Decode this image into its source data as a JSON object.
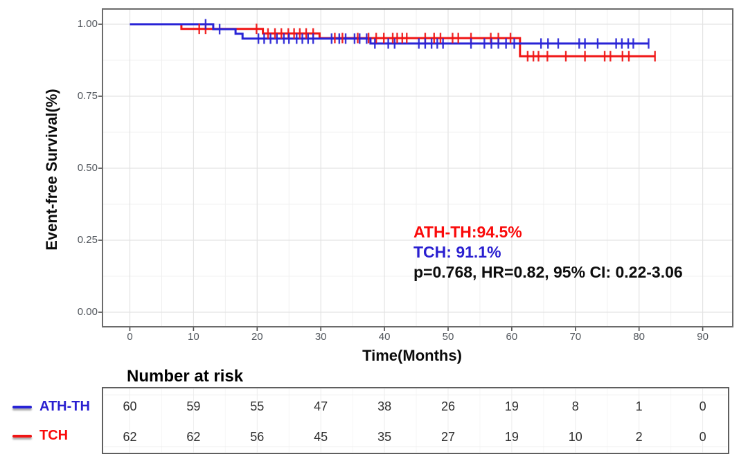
{
  "axes": {
    "y_label": "Event-free Survival(%)",
    "x_label": "Time(Months)",
    "x_ticks": [
      "0",
      "10",
      "20",
      "30",
      "40",
      "50",
      "60",
      "70",
      "80",
      "90"
    ],
    "x_tick_values": [
      0,
      10,
      20,
      30,
      40,
      50,
      60,
      70,
      80,
      90
    ],
    "y_ticks": [
      "1.00",
      "0.75",
      "0.50",
      "0.25",
      "0.00"
    ],
    "y_tick_values": [
      1.0,
      0.75,
      0.5,
      0.25,
      0.0
    ]
  },
  "annotation": {
    "lines": [
      {
        "text": "ATH-TH:94.5%",
        "color": "#fa0a0a"
      },
      {
        "text": "TCH: 91.1%",
        "color": "#2a1fd0"
      },
      {
        "text": "p=0.768, HR=0.82, 95% CI: 0.22-3.06",
        "color": "#0d0d0d"
      }
    ]
  },
  "risk_table": {
    "title": "Number at risk",
    "groups": [
      {
        "label": "ATH-TH",
        "label_color": "#2a1fd0",
        "line_color": "#2823d6",
        "counts": [
          "60",
          "59",
          "55",
          "47",
          "38",
          "26",
          "19",
          "8",
          "1",
          "0"
        ]
      },
      {
        "label": "TCH",
        "label_color": "#fa0a0a",
        "line_color": "#f01515",
        "counts": [
          "62",
          "62",
          "56",
          "45",
          "35",
          "27",
          "19",
          "10",
          "2",
          "0"
        ]
      }
    ]
  },
  "chart_data": {
    "type": "line",
    "subtype": "kaplan_meier_step",
    "title": "",
    "xlabel": "Time(Months)",
    "ylabel": "Event-free Survival(%)",
    "xlim": [
      -4,
      94
    ],
    "ylim": [
      -0.05,
      1.05
    ],
    "x_tick_values": [
      0,
      10,
      20,
      30,
      40,
      50,
      60,
      70,
      80,
      90
    ],
    "y_tick_values": [
      0,
      0.25,
      0.5,
      0.75,
      1.0
    ],
    "grid": true,
    "minor_grid": true,
    "colors": {
      "grid_major": "#e3e3e3",
      "grid_minor": "#f0f0f0",
      "panel_border": "#6b6b6b"
    },
    "series": [
      {
        "name": "ATH-TH",
        "color": "#2823d6",
        "steps": [
          [
            0,
            1.0
          ],
          [
            13.1,
            0.983
          ],
          [
            16.6,
            0.967
          ],
          [
            17.7,
            0.95
          ],
          [
            37.8,
            0.933
          ]
        ],
        "end_month": 81.5,
        "censors": [
          [
            11.9,
            1.0
          ],
          [
            14.1,
            0.983
          ],
          [
            20.2,
            0.95
          ],
          [
            21.1,
            0.95
          ],
          [
            22.1,
            0.95
          ],
          [
            23.1,
            0.95
          ],
          [
            24.2,
            0.95
          ],
          [
            25.0,
            0.95
          ],
          [
            26.2,
            0.95
          ],
          [
            27.1,
            0.95
          ],
          [
            28.0,
            0.95
          ],
          [
            28.8,
            0.95
          ],
          [
            31.7,
            0.95
          ],
          [
            32.9,
            0.95
          ],
          [
            33.9,
            0.95
          ],
          [
            35.3,
            0.95
          ],
          [
            36.1,
            0.95
          ],
          [
            37.2,
            0.95
          ],
          [
            38.5,
            0.933
          ],
          [
            40.6,
            0.933
          ],
          [
            41.6,
            0.933
          ],
          [
            45.4,
            0.933
          ],
          [
            46.4,
            0.933
          ],
          [
            47.4,
            0.933
          ],
          [
            48.3,
            0.933
          ],
          [
            49.2,
            0.933
          ],
          [
            53.6,
            0.933
          ],
          [
            55.7,
            0.933
          ],
          [
            56.8,
            0.933
          ],
          [
            57.9,
            0.933
          ],
          [
            59.1,
            0.933
          ],
          [
            60.4,
            0.933
          ],
          [
            64.6,
            0.933
          ],
          [
            65.7,
            0.933
          ],
          [
            67.3,
            0.933
          ],
          [
            70.6,
            0.933
          ],
          [
            71.5,
            0.933
          ],
          [
            73.5,
            0.933
          ],
          [
            76.4,
            0.933
          ],
          [
            77.3,
            0.933
          ],
          [
            78.3,
            0.933
          ],
          [
            79.1,
            0.933
          ],
          [
            81.5,
            0.933
          ]
        ]
      },
      {
        "name": "TCH",
        "color": "#f01515",
        "steps": [
          [
            0,
            1.0
          ],
          [
            8.1,
            0.984
          ],
          [
            20.9,
            0.968
          ],
          [
            29.8,
            0.952
          ],
          [
            61.3,
            0.889
          ]
        ],
        "end_month": 82.5,
        "censors": [
          [
            10.9,
            0.984
          ],
          [
            11.9,
            0.984
          ],
          [
            19.9,
            0.984
          ],
          [
            21.7,
            0.968
          ],
          [
            22.8,
            0.968
          ],
          [
            23.8,
            0.968
          ],
          [
            24.9,
            0.968
          ],
          [
            25.8,
            0.968
          ],
          [
            26.7,
            0.968
          ],
          [
            27.7,
            0.968
          ],
          [
            28.8,
            0.968
          ],
          [
            32.2,
            0.952
          ],
          [
            33.4,
            0.952
          ],
          [
            35.8,
            0.952
          ],
          [
            37.5,
            0.952
          ],
          [
            38.7,
            0.952
          ],
          [
            39.9,
            0.952
          ],
          [
            41.3,
            0.952
          ],
          [
            42.0,
            0.952
          ],
          [
            42.8,
            0.952
          ],
          [
            43.5,
            0.952
          ],
          [
            46.4,
            0.952
          ],
          [
            47.8,
            0.952
          ],
          [
            48.8,
            0.952
          ],
          [
            50.7,
            0.952
          ],
          [
            51.6,
            0.952
          ],
          [
            53.6,
            0.952
          ],
          [
            56.7,
            0.952
          ],
          [
            57.9,
            0.952
          ],
          [
            59.8,
            0.952
          ],
          [
            62.5,
            0.889
          ],
          [
            63.4,
            0.889
          ],
          [
            64.2,
            0.889
          ],
          [
            65.6,
            0.889
          ],
          [
            68.5,
            0.889
          ],
          [
            71.5,
            0.889
          ],
          [
            74.6,
            0.889
          ],
          [
            75.5,
            0.889
          ],
          [
            77.4,
            0.889
          ],
          [
            78.4,
            0.889
          ],
          [
            82.5,
            0.889
          ]
        ]
      }
    ],
    "annotations": [
      "ATH-TH:94.5%",
      "TCH: 91.1%",
      "p=0.768, HR=0.82, 95% CI: 0.22-3.06"
    ],
    "risk_table": {
      "title": "Number at risk",
      "time_points": [
        0,
        10,
        20,
        30,
        40,
        50,
        60,
        70,
        80,
        90
      ],
      "rows": [
        {
          "name": "ATH-TH",
          "counts": [
            60,
            59,
            55,
            47,
            38,
            26,
            19,
            8,
            1,
            0
          ]
        },
        {
          "name": "TCH",
          "counts": [
            62,
            62,
            56,
            45,
            35,
            27,
            19,
            10,
            2,
            0
          ]
        }
      ]
    }
  }
}
